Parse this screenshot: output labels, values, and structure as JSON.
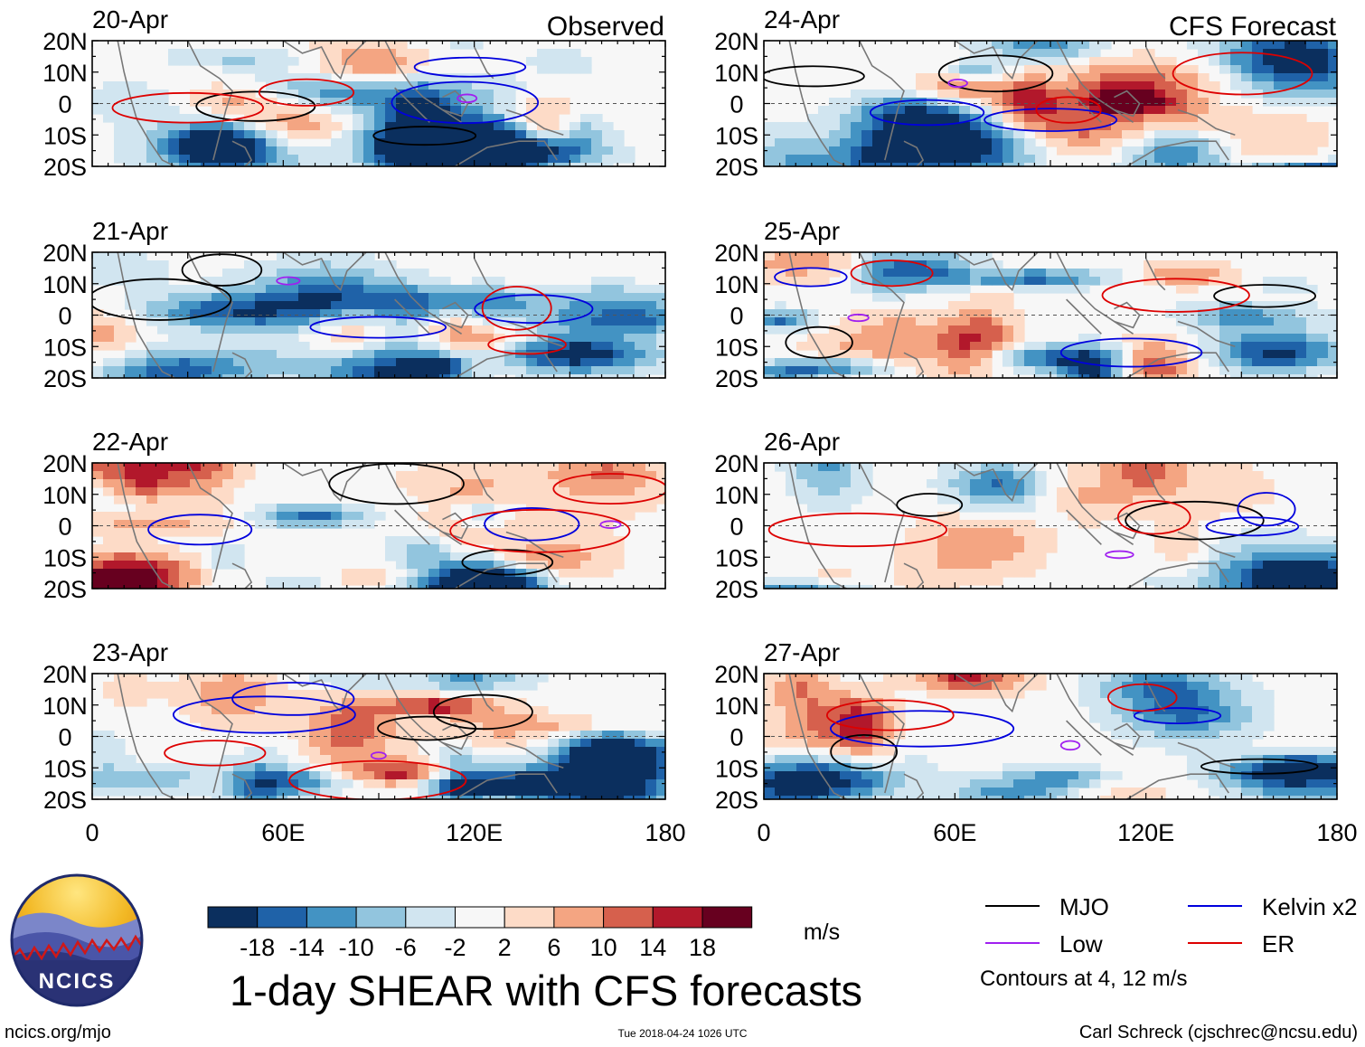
{
  "chart_data": {
    "type": "heatmap",
    "title": "1-day SHEAR with CFS forecasts",
    "variable": "SHEAR",
    "units": "m/s",
    "column_labels": {
      "observed": "Observed",
      "forecast": "CFS Forecast"
    },
    "lon_range": [
      0,
      180
    ],
    "lat_range": [
      -20,
      20
    ],
    "x_ticks": [
      "0",
      "60E",
      "120E",
      "180"
    ],
    "y_ticks": [
      "20N",
      "10N",
      "0",
      "10S",
      "20S"
    ],
    "panels": [
      {
        "date": "20-Apr",
        "kind": "observed"
      },
      {
        "date": "21-Apr",
        "kind": "observed"
      },
      {
        "date": "22-Apr",
        "kind": "observed"
      },
      {
        "date": "23-Apr",
        "kind": "observed"
      },
      {
        "date": "24-Apr",
        "kind": "forecast"
      },
      {
        "date": "25-Apr",
        "kind": "forecast"
      },
      {
        "date": "26-Apr",
        "kind": "forecast"
      },
      {
        "date": "27-Apr",
        "kind": "forecast"
      }
    ],
    "colorbar": {
      "labels": [
        "-18",
        "-14",
        "-10",
        "-6",
        "-2",
        "2",
        "6",
        "10",
        "14",
        "18"
      ],
      "colors": [
        "#0b2f5e",
        "#1f62a8",
        "#4393c3",
        "#92c5de",
        "#d1e5f0",
        "#f7f7f7",
        "#fddbc7",
        "#f4a582",
        "#d6604d",
        "#b2182b",
        "#67001f"
      ]
    },
    "contour_note": "Contours at 4, 12 m/s",
    "legend": [
      {
        "label": "MJO",
        "color": "#000000"
      },
      {
        "label": "Kelvin x2",
        "color": "#0000dd"
      },
      {
        "label": "Low",
        "color": "#a020f0"
      },
      {
        "label": "ER",
        "color": "#dd0000"
      }
    ]
  },
  "footer": {
    "logo_text": "NCICS",
    "url": "ncics.org/mjo",
    "timestamp": "Tue 2018-04-24 1026 UTC",
    "author": "Carl Schreck (cjschrec@ncsu.edu)"
  }
}
